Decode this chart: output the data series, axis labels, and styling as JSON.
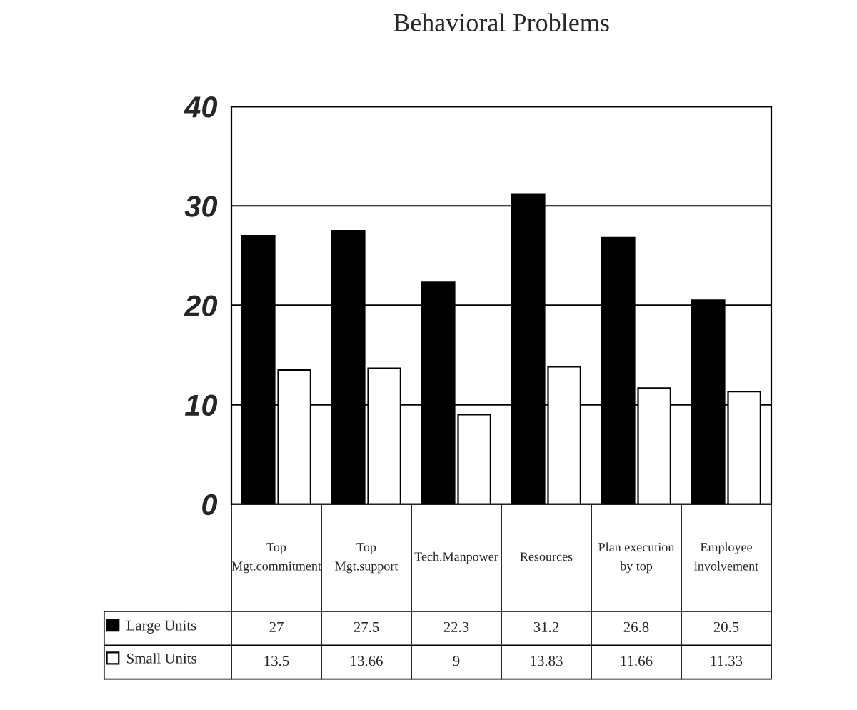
{
  "chart_data": {
    "type": "bar",
    "title": "Behavioral Problems",
    "categories": [
      "Top Mgt.commitment",
      "Top Mgt.support",
      "Tech.Manpower",
      "Resources",
      "Plan execution by top",
      "Employee involvement"
    ],
    "series": [
      {
        "name": "Large Units",
        "color": "#000000",
        "values": [
          27,
          27.5,
          22.3,
          31.2,
          26.8,
          20.5
        ]
      },
      {
        "name": "Small Units",
        "color": "#ffffff",
        "values": [
          13.5,
          13.66,
          9,
          13.83,
          11.66,
          11.33
        ]
      }
    ],
    "ylim": [
      0,
      40
    ],
    "yticks": [
      0,
      10,
      20,
      30,
      40
    ],
    "grid": "y",
    "data_labels": true,
    "legend": "bottom"
  }
}
